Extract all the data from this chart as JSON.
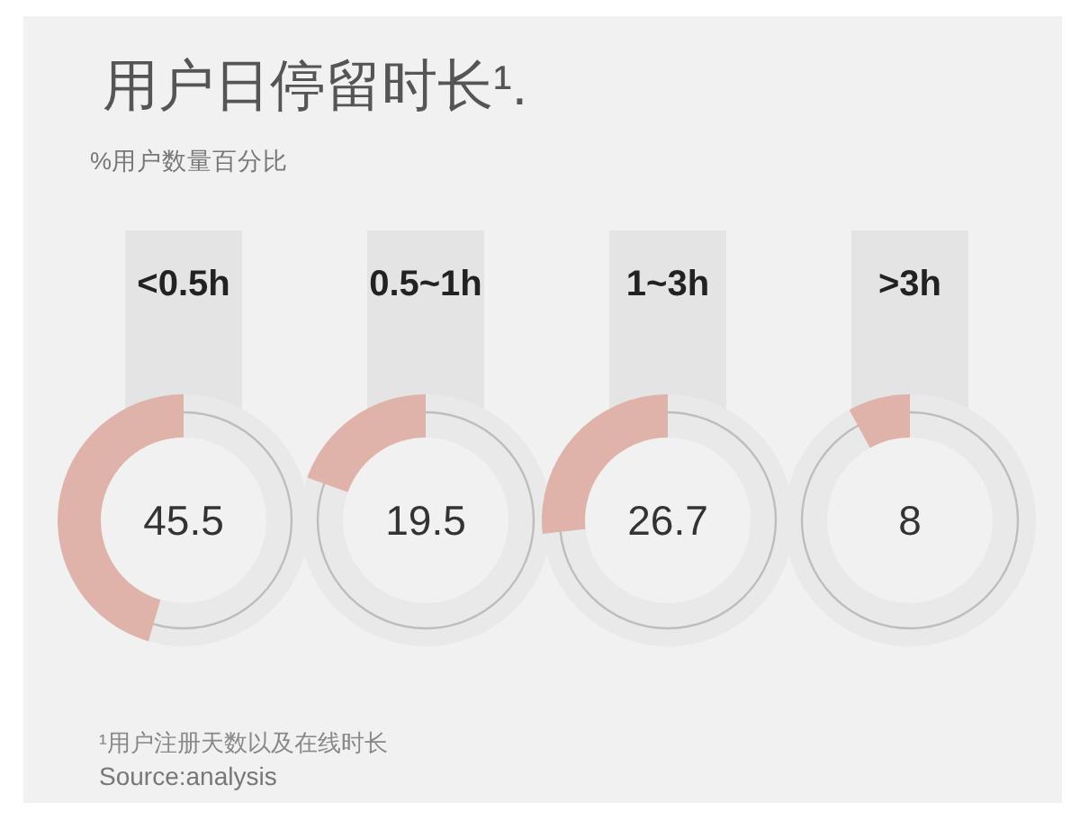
{
  "chart_data": [
    {
      "type": "other",
      "title": "用户日停留时长¹.",
      "subtitle": "%用户数量百分比",
      "annotations": [
        "¹用户注册天数以及在线时长",
        "Source:analysis"
      ]
    },
    {
      "type": "donut",
      "title": "<0.5h",
      "categories": [
        null,
        null
      ],
      "values": [
        45.5,
        54.5
      ],
      "colors": [
        "#dfb3a9",
        "#e9e9e9"
      ],
      "value_labels": [
        "45.5",
        null
      ]
    },
    {
      "type": "donut",
      "title": "0.5~1h",
      "categories": [
        null,
        null
      ],
      "values": [
        19.5,
        80.5
      ],
      "colors": [
        "#dfb3a9",
        "#e9e9e9"
      ],
      "value_labels": [
        "19.5",
        null
      ]
    },
    {
      "type": "donut",
      "title": "1~3h",
      "categories": [
        null,
        null
      ],
      "values": [
        26.7,
        73.3
      ],
      "colors": [
        "#dfb3a9",
        "#e9e9e9"
      ],
      "value_labels": [
        "26.7",
        null
      ]
    },
    {
      "type": "donut",
      "title": ">3h",
      "categories": [
        null,
        null
      ],
      "values": [
        8,
        92
      ],
      "colors": [
        "#dfb3a9",
        "#e9e9e9"
      ],
      "value_labels": [
        "8",
        null
      ]
    }
  ]
}
